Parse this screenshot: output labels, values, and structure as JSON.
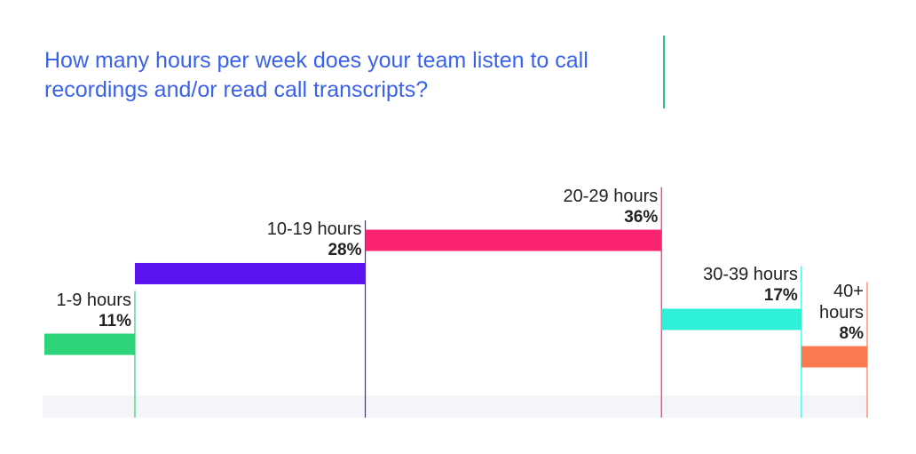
{
  "chart_data": {
    "type": "bar",
    "title": "How many hours per week does your team listen to call recordings and/or read call transcripts?",
    "categories": [
      "1-9 hours",
      "10-19 hours",
      "20-29 hours",
      "30-39 hours",
      "40+ hours"
    ],
    "values": [
      11,
      28,
      36,
      17,
      8
    ],
    "value_labels": [
      "11%",
      "28%",
      "36%",
      "17%",
      "8%"
    ],
    "colors": [
      "#2ed47a",
      "#5b14f0",
      "#fb2470",
      "#2ef0d8",
      "#fb7a50"
    ]
  }
}
